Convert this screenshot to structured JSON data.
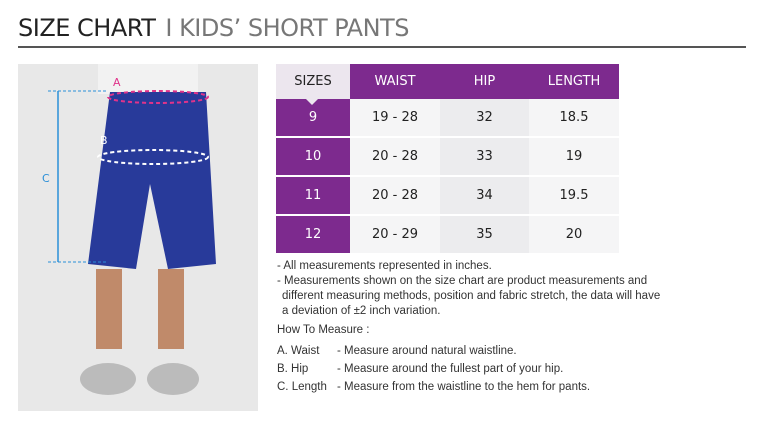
{
  "title": {
    "main": "SIZE CHART",
    "sub": "I KIDS’ SHORT PANTS"
  },
  "photo": {
    "labels": [
      "A",
      "B",
      "C"
    ]
  },
  "table": {
    "headers": [
      "SIZES",
      "WAIST",
      "HIP",
      "LENGTH"
    ],
    "rows": [
      [
        "9",
        "19 - 28",
        "32",
        "18.5"
      ],
      [
        "10",
        "20 - 28",
        "33",
        "19"
      ],
      [
        "11",
        "20 - 28",
        "34",
        "19.5"
      ],
      [
        "12",
        "20 - 29",
        "35",
        "20"
      ]
    ]
  },
  "notes": [
    "- All measurements represented in inches.",
    "- Measurements shown on the size chart are product measurements and",
    "different measuring methods, position and fabric stretch, the data will have",
    "a deviation of ±2 inch variation."
  ],
  "how": {
    "heading": "How To Measure :",
    "items": [
      {
        "label": "A. Waist",
        "text": "- Measure around natural waistline."
      },
      {
        "label": "B. Hip",
        "text": "- Measure around the fullest part of your hip."
      },
      {
        "label": "C. Length",
        "text": "- Measure from the waistline to the hem for pants."
      }
    ]
  }
}
